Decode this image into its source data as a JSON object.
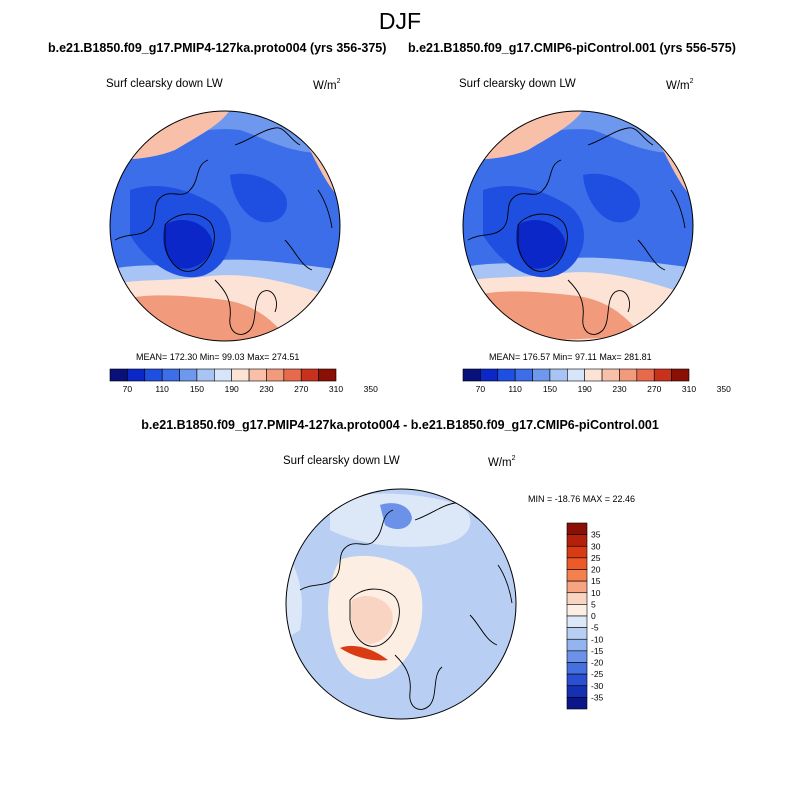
{
  "figure": {
    "season": "DJF",
    "left_case": "b.e21.B1850.f09_g17.PMIP4-127ka.proto004 (yrs 356-375)",
    "right_case": "b.e21.B1850.f09_g17.CMIP6-piControl.001 (yrs 556-575)",
    "diff_title": "b.e21.B1850.f09_g17.PMIP4-127ka.proto004 - b.e21.B1850.f09_g17.CMIP6-piControl.001"
  },
  "chart_data": [
    {
      "type": "heatmap",
      "name": "polar-map-left",
      "projection": "north-polar-stereographic",
      "title": "b.e21.B1850.f09_g17.PMIP4-127ka.proto004 (yrs 356-375)",
      "variable": "Surf clearsky down LW",
      "units": "W/m",
      "units_sup": "2",
      "stats_text": "MEAN= 172.30  Min=  99.03  Max= 274.51",
      "mean": 172.3,
      "min": 99.03,
      "max": 274.51,
      "colorbar_levels": [
        70,
        110,
        150,
        190,
        230,
        270,
        310,
        350
      ],
      "colorbar_labels": [
        "70",
        "110",
        "150",
        "190",
        "230",
        "270",
        "310",
        "350"
      ]
    },
    {
      "type": "heatmap",
      "name": "polar-map-right",
      "projection": "north-polar-stereographic",
      "title": "b.e21.B1850.f09_g17.CMIP6-piControl.001 (yrs 556-575)",
      "variable": "Surf clearsky down LW",
      "units": "W/m",
      "units_sup": "2",
      "stats_text": "MEAN= 176.57  Min=  97.11  Max= 281.81",
      "mean": 176.57,
      "min": 97.11,
      "max": 281.81,
      "colorbar_levels": [
        70,
        110,
        150,
        190,
        230,
        270,
        310,
        350
      ],
      "colorbar_labels": [
        "70",
        "110",
        "150",
        "190",
        "230",
        "270",
        "310",
        "350"
      ]
    },
    {
      "type": "heatmap",
      "name": "polar-map-diff",
      "projection": "north-polar-stereographic",
      "title": "b.e21.B1850.f09_g17.PMIP4-127ka.proto004 - b.e21.B1850.f09_g17.CMIP6-piControl.001",
      "variable": "Surf clearsky down LW",
      "units": "W/m",
      "units_sup": "2",
      "stats_text": "MIN = -18.76 MAX =  22.46",
      "min": -18.76,
      "max": 22.46,
      "colorbar_levels": [
        35,
        30,
        25,
        20,
        15,
        10,
        5,
        0,
        -5,
        -10,
        -15,
        -20,
        -25,
        -30,
        -35
      ],
      "colorbar_labels": [
        "35",
        "30",
        "25",
        "20",
        "15",
        "10",
        "5",
        "0",
        "-5",
        "-10",
        "-15",
        "-20",
        "-25",
        "-30",
        "-35"
      ]
    }
  ],
  "colors": {
    "abs_palette": [
      "#08107a",
      "#0b27c8",
      "#1f4fe0",
      "#3b6ee8",
      "#6e97ee",
      "#a7c4f4",
      "#d6e5fa",
      "#fce3d6",
      "#f8c0a8",
      "#f29a7c",
      "#e86a4c",
      "#c8321d",
      "#8a0f05"
    ],
    "diff_palette": [
      "#8a0f05",
      "#b5200c",
      "#d93b15",
      "#ee5a27",
      "#f3804e",
      "#f6a482",
      "#fad4c2",
      "#fdeee4",
      "#dce8f8",
      "#b8cff3",
      "#93b4ee",
      "#6b91e8",
      "#4470e0",
      "#2a4fd3",
      "#1630b4",
      "#0a168a"
    ],
    "land_outline": "#000000"
  }
}
